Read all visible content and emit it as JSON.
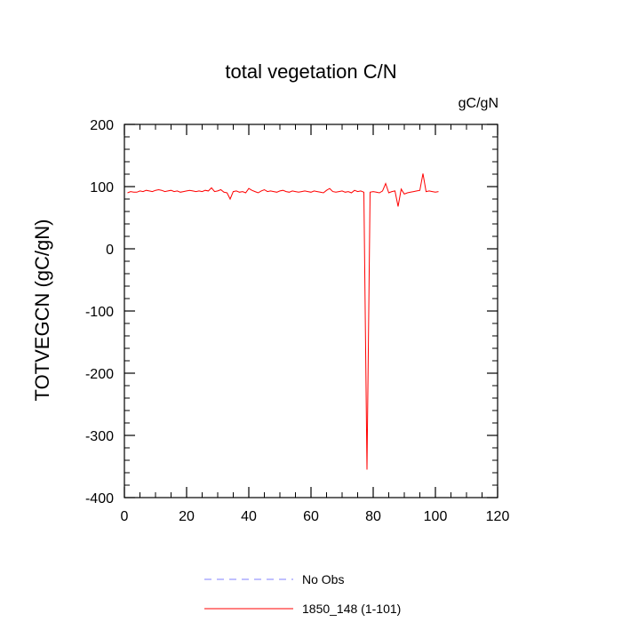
{
  "chart_data": {
    "type": "line",
    "title": "total vegetation C/N",
    "units": "gC/gN",
    "ylabel": "TOTVEGCN  (gC/gN)",
    "xlabel": "",
    "xlim": [
      0,
      120
    ],
    "ylim": [
      -400,
      200
    ],
    "xticks": [
      "0",
      "20",
      "40",
      "60",
      "80",
      "100",
      "120"
    ],
    "yticks": [
      "200",
      "100",
      "0",
      "-100",
      "-200",
      "-300",
      "-400"
    ],
    "grid": false,
    "legend_position": "bottom",
    "series": [
      {
        "name": "No Obs",
        "color": "#8080ff",
        "dash": true,
        "x": [],
        "y": []
      },
      {
        "name": "1850_148 (1-101)",
        "color": "#ff0000",
        "dash": false,
        "x": [
          1,
          2,
          3,
          4,
          5,
          6,
          7,
          8,
          9,
          10,
          11,
          12,
          13,
          14,
          15,
          16,
          17,
          18,
          19,
          20,
          21,
          22,
          23,
          24,
          25,
          26,
          27,
          28,
          29,
          30,
          31,
          32,
          33,
          34,
          35,
          36,
          37,
          38,
          39,
          40,
          41,
          42,
          43,
          44,
          45,
          46,
          47,
          48,
          49,
          50,
          51,
          52,
          53,
          54,
          55,
          56,
          57,
          58,
          59,
          60,
          61,
          62,
          63,
          64,
          65,
          66,
          67,
          68,
          69,
          70,
          71,
          72,
          73,
          74,
          75,
          76,
          77,
          78,
          79,
          80,
          81,
          82,
          83,
          84,
          85,
          86,
          87,
          88,
          89,
          90,
          91,
          92,
          93,
          94,
          95,
          96,
          97,
          98,
          99,
          100,
          101
        ],
        "y": [
          90,
          92,
          91,
          91,
          93,
          92,
          94,
          93,
          92,
          94,
          95,
          94,
          92,
          93,
          94,
          92,
          93,
          91,
          92,
          93,
          94,
          93,
          92,
          93,
          92,
          94,
          93,
          98,
          92,
          93,
          95,
          91,
          90,
          80,
          92,
          93,
          91,
          92,
          90,
          97,
          94,
          92,
          90,
          93,
          95,
          92,
          93,
          92,
          91,
          93,
          94,
          92,
          91,
          93,
          92,
          91,
          92,
          93,
          92,
          91,
          93,
          92,
          91,
          90,
          94,
          97,
          92,
          91,
          92,
          93,
          91,
          92,
          90,
          94,
          92,
          93,
          91,
          -355,
          91,
          92,
          91,
          90,
          93,
          105,
          90,
          92,
          93,
          68,
          96,
          88,
          90,
          91,
          92,
          93,
          94,
          121,
          92,
          93,
          92,
          91,
          92
        ]
      }
    ]
  }
}
